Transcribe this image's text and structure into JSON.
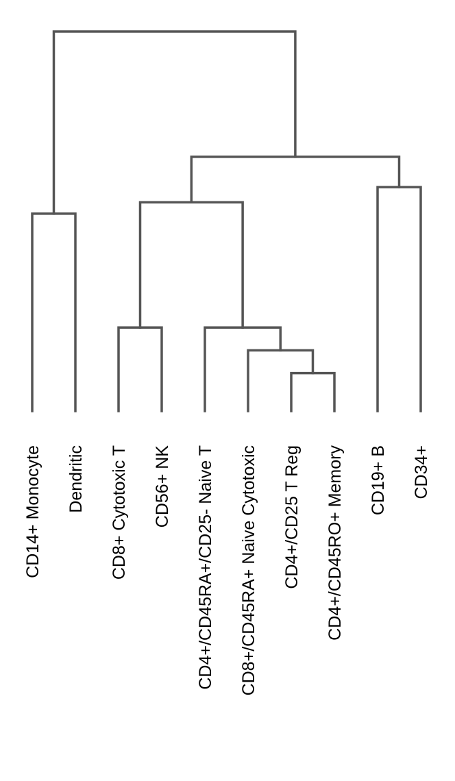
{
  "dendrogram": {
    "line_color": "#555555",
    "text_color": "#000000",
    "leaves": [
      {
        "id": "mono",
        "label": "CD14+ Monocyte"
      },
      {
        "id": "dend",
        "label": "Dendritic"
      },
      {
        "id": "cd8cyto",
        "label": "CD8+ Cytotoxic T"
      },
      {
        "id": "nk",
        "label": "CD56+ NK"
      },
      {
        "id": "cd4naive",
        "label": "CD4+/CD45RA+/CD25- Naive T"
      },
      {
        "id": "cd8naive",
        "label": "CD8+/CD45RA+ Naive Cytotoxic"
      },
      {
        "id": "treg",
        "label": "CD4+/CD25 T Reg"
      },
      {
        "id": "mem",
        "label": "CD4+/CD45RO+ Memory"
      },
      {
        "id": "b",
        "label": "CD19+ B"
      },
      {
        "id": "cd34",
        "label": "CD34+"
      }
    ],
    "merges": [
      {
        "id": "m_treg_mem",
        "children": [
          "treg",
          "mem"
        ],
        "height": 0.1
      },
      {
        "id": "m_cd8n",
        "children": [
          "cd8naive",
          "m_treg_mem"
        ],
        "height": 0.16
      },
      {
        "id": "m_naive",
        "children": [
          "cd4naive",
          "m_cd8n"
        ],
        "height": 0.22
      },
      {
        "id": "m_cyto_nk",
        "children": [
          "cd8cyto",
          "nk"
        ],
        "height": 0.22
      },
      {
        "id": "m_b_cd34",
        "children": [
          "b",
          "cd34"
        ],
        "height": 0.59
      },
      {
        "id": "m_mono_dend",
        "children": [
          "mono",
          "dend"
        ],
        "height": 0.52
      },
      {
        "id": "m_t",
        "children": [
          "m_cyto_nk",
          "m_naive"
        ],
        "height": 0.55
      },
      {
        "id": "m_lymph",
        "children": [
          "m_t",
          "m_b_cd34"
        ],
        "height": 0.67
      },
      {
        "id": "m_root",
        "children": [
          "m_mono_dend",
          "m_lymph"
        ],
        "height": 1.0
      }
    ]
  }
}
